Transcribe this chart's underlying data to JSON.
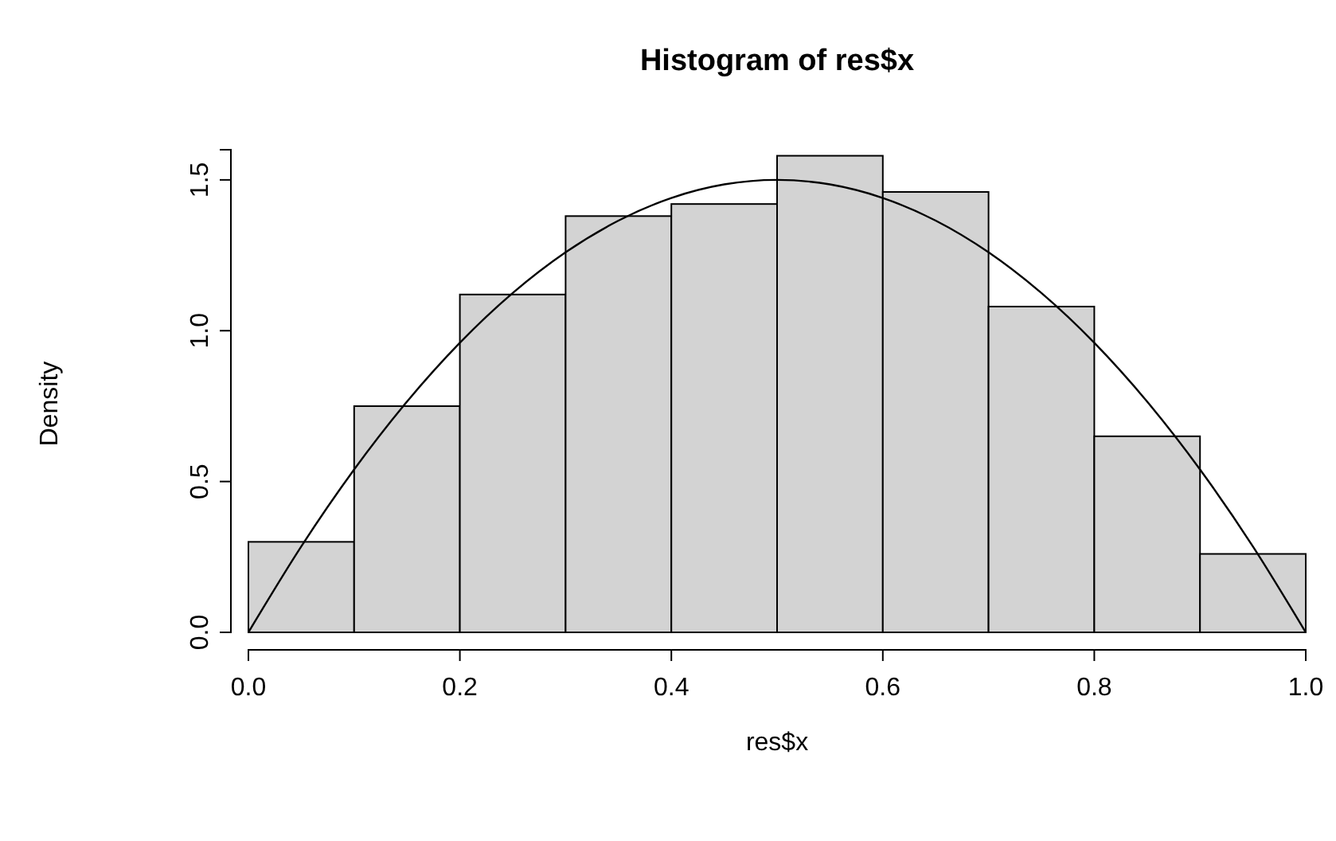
{
  "chart_data": {
    "type": "histogram",
    "title": "Histogram of res$x",
    "xlabel": "res$x",
    "ylabel": "Density",
    "bins": [
      0,
      0.1,
      0.2,
      0.3,
      0.4,
      0.5,
      0.6,
      0.7,
      0.8,
      0.9,
      1.0
    ],
    "values": [
      0.3,
      0.75,
      1.12,
      1.38,
      1.42,
      1.58,
      1.46,
      1.08,
      0.65,
      0.26
    ],
    "color": "#d3d3d3",
    "series": [
      {
        "type": "line",
        "color": "#000000",
        "x": [
          0,
          0.05,
          0.1,
          0.15,
          0.2,
          0.25,
          0.3,
          0.35,
          0.4,
          0.45,
          0.5,
          0.55,
          0.6,
          0.65,
          0.7,
          0.75,
          0.8,
          0.85,
          0.9,
          0.95,
          1.0
        ],
        "values": [
          0,
          0.285,
          0.54,
          0.765,
          0.96,
          1.125,
          1.26,
          1.365,
          1.44,
          1.485,
          1.5,
          1.485,
          1.44,
          1.365,
          1.26,
          1.125,
          0.96,
          0.765,
          0.54,
          0.285,
          0
        ]
      }
    ],
    "xlim": [
      0,
      1
    ],
    "xticks": [
      {
        "value": 0,
        "label": "0.0"
      },
      {
        "value": 0.2,
        "label": "0.2"
      },
      {
        "value": 0.4,
        "label": "0.4"
      },
      {
        "value": 0.6,
        "label": "0.6"
      },
      {
        "value": 0.8,
        "label": "0.8"
      },
      {
        "value": 1,
        "label": "1.0"
      }
    ],
    "ylim": [
      0,
      1.6
    ],
    "yticks": [
      {
        "value": 0,
        "label": "0.0"
      },
      {
        "value": 0.5,
        "label": "0.5"
      },
      {
        "value": 1,
        "label": "1.0"
      },
      {
        "value": 1.5,
        "label": "1.5"
      }
    ],
    "grid": false
  }
}
